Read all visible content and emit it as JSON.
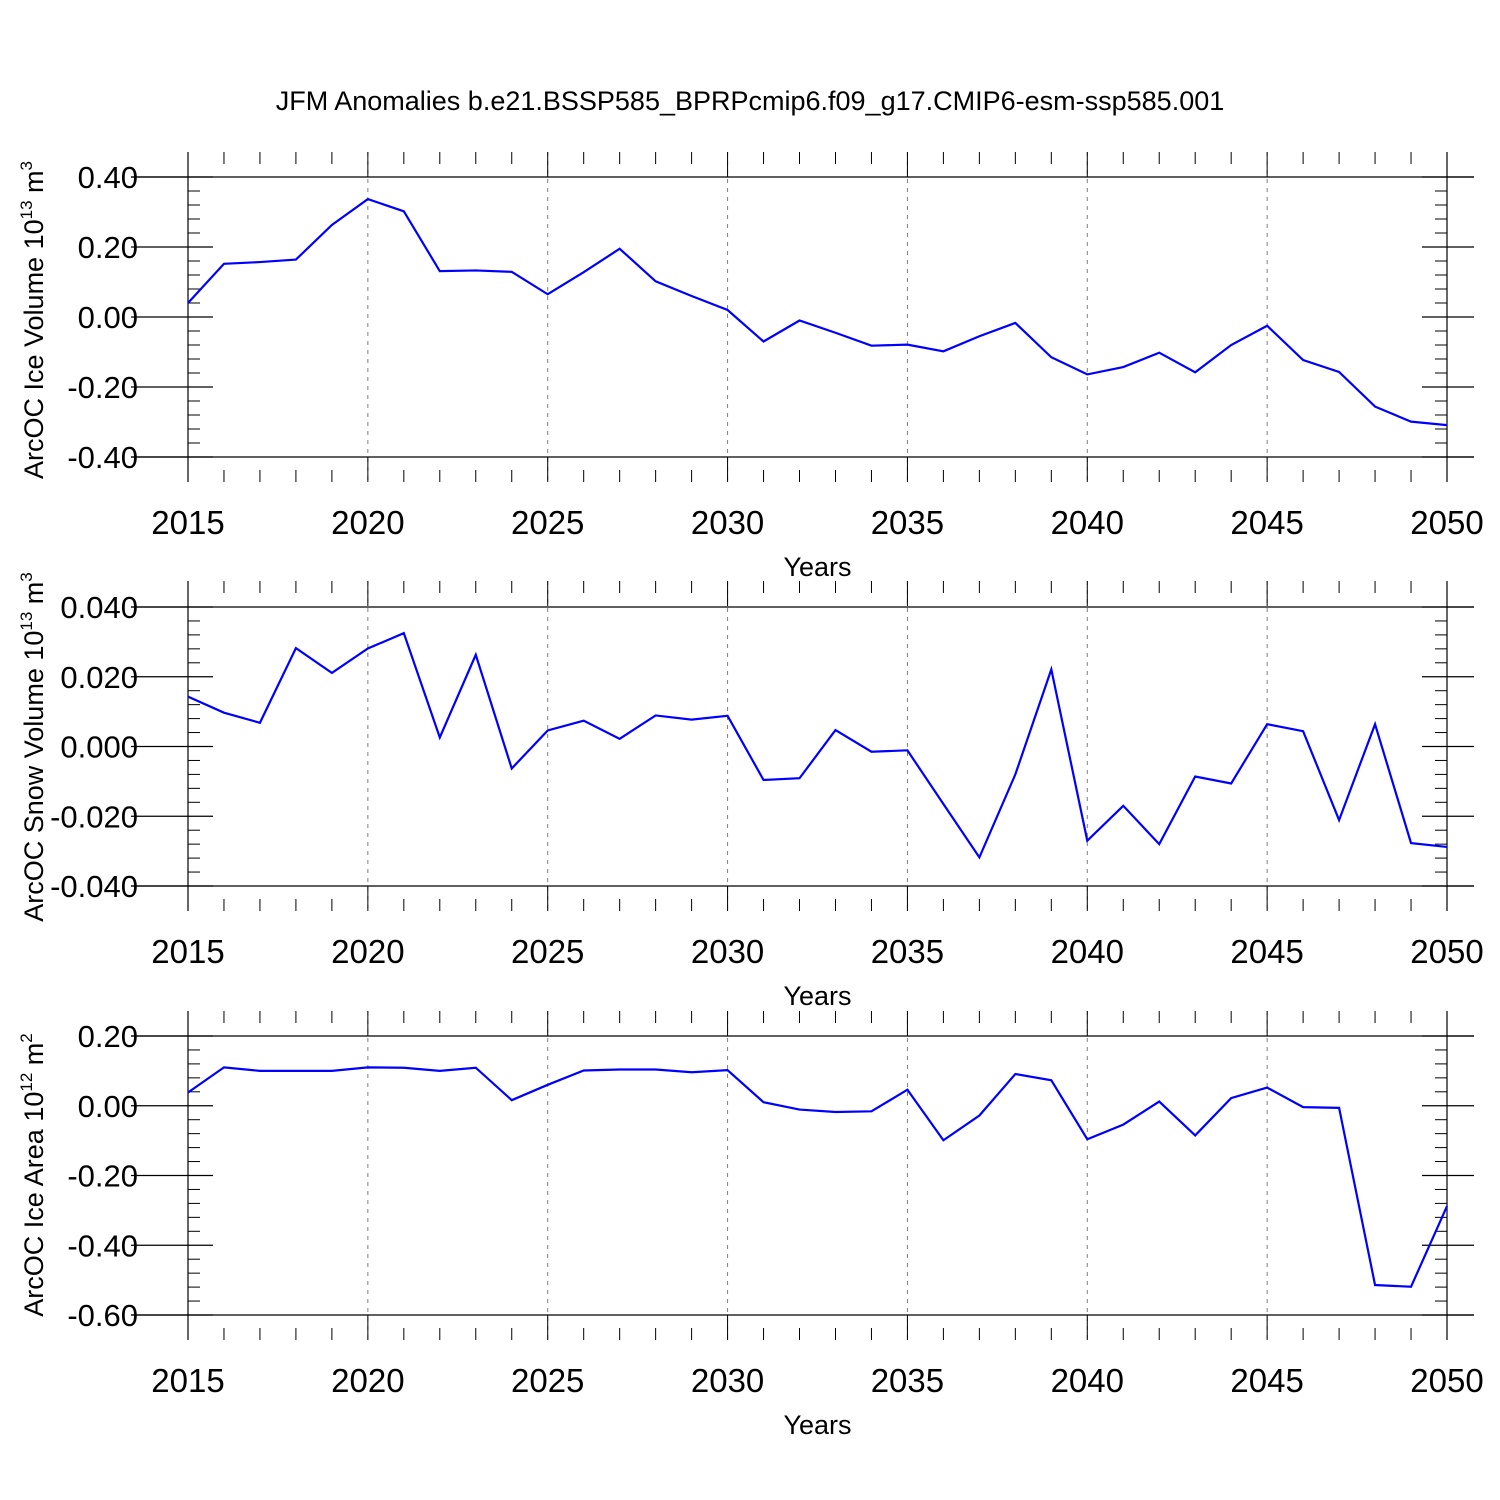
{
  "title": "JFM Anomalies b.e21.BSSP585_BPRPcmip6.f09_g17.CMIP6-esm-ssp585.001",
  "colors": {
    "line": "#0000ff",
    "axis": "#000000",
    "grid": "#7f7f7f",
    "background": "#ffffff"
  },
  "chart_data": [
    {
      "type": "line",
      "ylabel_main": "ArcOC Ice Volume 10",
      "ylabel_exp": "13",
      "ylabel_unit": "m",
      "ylabel_unit_exp": "3",
      "xlabel": "Years",
      "xlim": [
        2015,
        2050
      ],
      "ylim": [
        -0.4,
        0.4
      ],
      "xticks": [
        "2015",
        "2020",
        "2025",
        "2030",
        "2035",
        "2040",
        "2045",
        "2050"
      ],
      "yticks": [
        "0.40",
        "0.20",
        "0.00",
        "-0.20",
        "-0.40"
      ],
      "x": [
        2015,
        2016,
        2017,
        2018,
        2019,
        2020,
        2021,
        2022,
        2023,
        2024,
        2025,
        2026,
        2027,
        2028,
        2029,
        2030,
        2031,
        2032,
        2033,
        2034,
        2035,
        2036,
        2037,
        2038,
        2039,
        2040,
        2041,
        2042,
        2043,
        2044,
        2045,
        2046,
        2047,
        2048,
        2049,
        2050
      ],
      "series": [
        {
          "name": "ice volume",
          "values": [
            0.04,
            0.152,
            0.157,
            0.164,
            0.263,
            0.337,
            0.302,
            0.131,
            0.133,
            0.129,
            0.065,
            0.128,
            0.195,
            0.102,
            0.06,
            0.02,
            -0.07,
            -0.01,
            -0.045,
            -0.082,
            -0.079,
            -0.098,
            -0.055,
            -0.017,
            -0.115,
            -0.164,
            -0.143,
            -0.102,
            -0.158,
            -0.08,
            -0.025,
            -0.123,
            -0.157,
            -0.256,
            -0.299,
            -0.309
          ]
        }
      ]
    },
    {
      "type": "line",
      "ylabel_main": "ArcOC Snow Volume 10",
      "ylabel_exp": "13",
      "ylabel_unit": "m",
      "ylabel_unit_exp": "3",
      "xlabel": "Years",
      "xlim": [
        2015,
        2050
      ],
      "ylim": [
        -0.04,
        0.04
      ],
      "xticks": [
        "2015",
        "2020",
        "2025",
        "2030",
        "2035",
        "2040",
        "2045",
        "2050"
      ],
      "yticks": [
        "0.040",
        "0.020",
        "0.000",
        "-0.020",
        "-0.040"
      ],
      "x": [
        2015,
        2016,
        2017,
        2018,
        2019,
        2020,
        2021,
        2022,
        2023,
        2024,
        2025,
        2026,
        2027,
        2028,
        2029,
        2030,
        2031,
        2032,
        2033,
        2034,
        2035,
        2036,
        2037,
        2038,
        2039,
        2040,
        2041,
        2042,
        2043,
        2044,
        2045,
        2046,
        2047,
        2048,
        2049,
        2050
      ],
      "series": [
        {
          "name": "snow volume",
          "values": [
            0.0143,
            0.0097,
            0.0068,
            0.0282,
            0.0211,
            0.0281,
            0.0325,
            0.0026,
            0.0263,
            -0.0063,
            0.0046,
            0.0074,
            0.0022,
            0.0089,
            0.0077,
            0.0088,
            -0.0096,
            -0.0091,
            0.0047,
            -0.0015,
            -0.0011,
            -0.0165,
            -0.0318,
            -0.008,
            0.0221,
            -0.027,
            -0.017,
            -0.028,
            -0.0086,
            -0.0106,
            0.0064,
            0.0044,
            -0.0211,
            0.0064,
            -0.0277,
            -0.0288
          ]
        }
      ]
    },
    {
      "type": "line",
      "ylabel_main": "ArcOC Ice Area 10",
      "ylabel_exp": "12",
      "ylabel_unit": "m",
      "ylabel_unit_exp": "2",
      "xlabel": "Years",
      "xlim": [
        2015,
        2050
      ],
      "ylim": [
        -0.6,
        0.2
      ],
      "xticks": [
        "2015",
        "2020",
        "2025",
        "2030",
        "2035",
        "2040",
        "2045",
        "2050"
      ],
      "yticks": [
        "0.20",
        "0.00",
        "-0.20",
        "-0.40",
        "-0.60"
      ],
      "x": [
        2015,
        2016,
        2017,
        2018,
        2019,
        2020,
        2021,
        2022,
        2023,
        2024,
        2025,
        2026,
        2027,
        2028,
        2029,
        2030,
        2031,
        2032,
        2033,
        2034,
        2035,
        2036,
        2037,
        2038,
        2039,
        2040,
        2041,
        2042,
        2043,
        2044,
        2045,
        2046,
        2047,
        2048,
        2049,
        2050
      ],
      "series": [
        {
          "name": "ice area",
          "values": [
            0.038,
            0.11,
            0.1,
            0.1,
            0.1,
            0.11,
            0.109,
            0.1,
            0.109,
            0.016,
            0.06,
            0.101,
            0.104,
            0.104,
            0.096,
            0.102,
            0.01,
            -0.011,
            -0.018,
            -0.016,
            0.046,
            -0.099,
            -0.028,
            0.091,
            0.073,
            -0.096,
            -0.054,
            0.012,
            -0.085,
            0.022,
            0.052,
            -0.004,
            -0.006,
            -0.514,
            -0.519,
            -0.288
          ]
        }
      ]
    }
  ]
}
